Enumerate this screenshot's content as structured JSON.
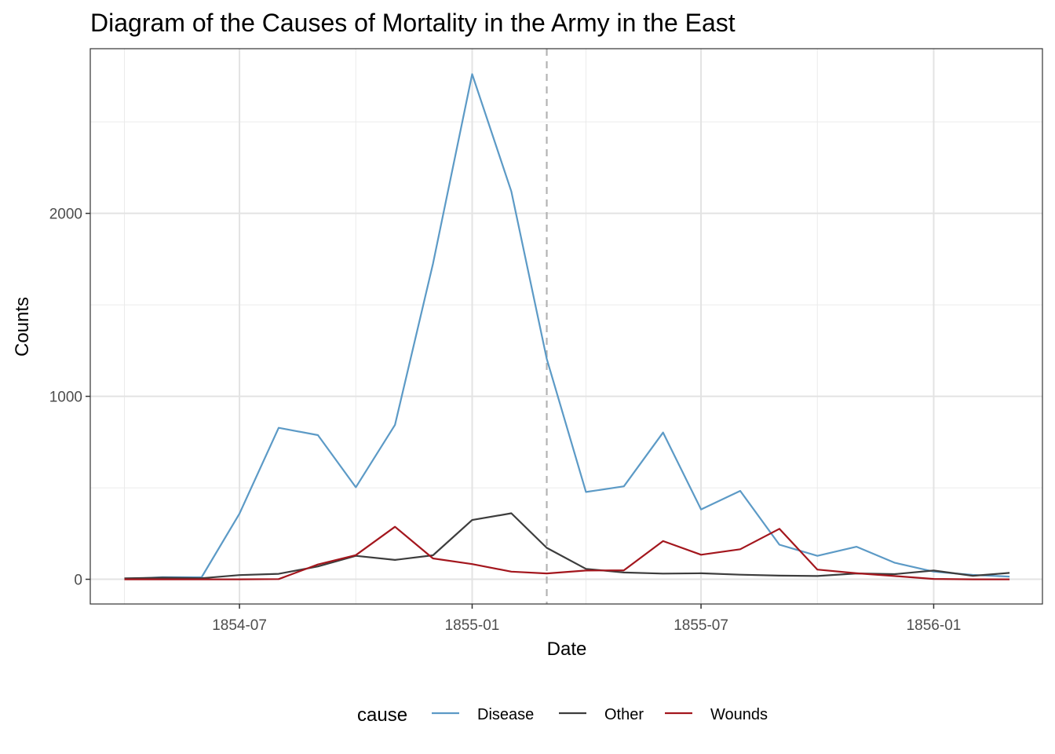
{
  "chart_data": {
    "type": "line",
    "title": "Diagram of the Causes of Mortality in the Army in the East",
    "xlabel": "Date",
    "ylabel": "Counts",
    "x": [
      "1854-04",
      "1854-05",
      "1854-06",
      "1854-07",
      "1854-08",
      "1854-09",
      "1854-10",
      "1854-11",
      "1854-12",
      "1855-01",
      "1855-02",
      "1855-03",
      "1855-04",
      "1855-05",
      "1855-06",
      "1855-07",
      "1855-08",
      "1855-09",
      "1855-10",
      "1855-11",
      "1855-12",
      "1856-01",
      "1856-02",
      "1856-03"
    ],
    "xlim": [
      "1854-03-05",
      "1856-03-27"
    ],
    "ylim": [
      -135,
      2900
    ],
    "x_ticks": [
      {
        "date": "1854-07-01",
        "label": "1854-07"
      },
      {
        "date": "1855-01-01",
        "label": "1855-01"
      },
      {
        "date": "1855-07-01",
        "label": "1855-07"
      },
      {
        "date": "1856-01-01",
        "label": "1856-01"
      }
    ],
    "y_ticks": [
      0,
      1000,
      2000
    ],
    "y_minor": [
      500,
      1500,
      2500
    ],
    "x_minor": [
      "1854-04-01",
      "1854-10-01",
      "1855-04-01",
      "1855-10-01"
    ],
    "grid": true,
    "vline": {
      "date": "1855-03-01",
      "style": "dashed",
      "color": "#b3b3b3"
    },
    "legend": {
      "title": "cause",
      "position": "bottom"
    },
    "series": [
      {
        "name": "Disease",
        "color": "#5c9ac6",
        "values": [
          1,
          12,
          11,
          359,
          828,
          788,
          503,
          844,
          1725,
          2761,
          2120,
          1205,
          477,
          508,
          802,
          382,
          483,
          189,
          128,
          178,
          91,
          42,
          24,
          15
        ]
      },
      {
        "name": "Other",
        "color": "#3d3d3d",
        "values": [
          5,
          9,
          6,
          23,
          30,
          70,
          128,
          106,
          131,
          324,
          361,
          172,
          57,
          37,
          31,
          33,
          25,
          20,
          18,
          32,
          28,
          48,
          19,
          35
        ]
      },
      {
        "name": "Wounds",
        "color": "#a3161d",
        "values": [
          0,
          0,
          0,
          0,
          1,
          81,
          132,
          287,
          114,
          83,
          42,
          32,
          48,
          49,
          209,
          134,
          164,
          276,
          53,
          33,
          18,
          2,
          0,
          0
        ]
      }
    ]
  }
}
